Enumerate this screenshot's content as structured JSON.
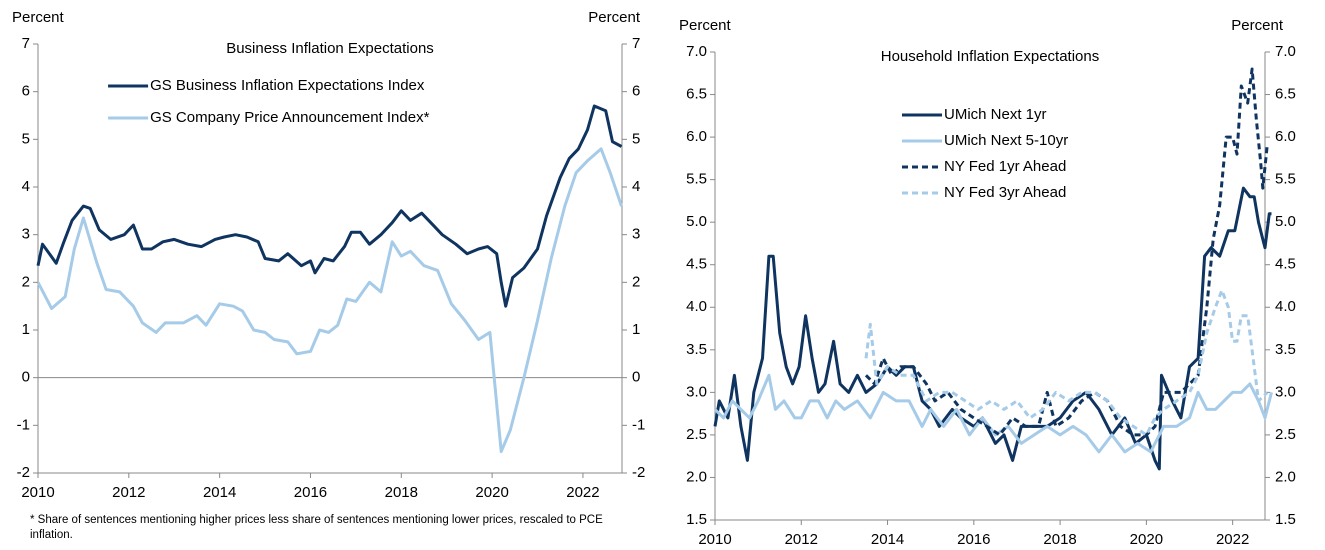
{
  "chart_data": [
    {
      "type": "line",
      "title": "Business Inflation Expectations",
      "y_label": "Percent",
      "y2_label": "Percent",
      "footnote": "* Share of sentences mentioning higher prices less share of sentences mentioning lower prices, rescaled to PCE inflation.",
      "xlim": [
        2010,
        2022.86
      ],
      "xticks": [
        2010,
        2012,
        2014,
        2016,
        2018,
        2020,
        2022
      ],
      "ylim": [
        -2,
        7
      ],
      "yticks": [
        -2,
        -1,
        0,
        1,
        2,
        3,
        4,
        5,
        6,
        7
      ],
      "y2lim": [
        -2,
        7
      ],
      "y2ticks": [
        -2,
        -1,
        0,
        1,
        2,
        3,
        4,
        5,
        6,
        7
      ],
      "zero_line": true,
      "legend": "upper center",
      "series": [
        {
          "name": "GS Business Inflation Expectations Index",
          "color": "#0f3460",
          "dash": false,
          "x": [
            2010.0,
            2010.1,
            2010.25,
            2010.4,
            2010.55,
            2010.75,
            2011.0,
            2011.15,
            2011.35,
            2011.6,
            2011.9,
            2012.1,
            2012.3,
            2012.5,
            2012.75,
            2013.0,
            2013.3,
            2013.6,
            2013.9,
            2014.1,
            2014.35,
            2014.6,
            2014.85,
            2015.0,
            2015.3,
            2015.5,
            2015.8,
            2016.0,
            2016.1,
            2016.3,
            2016.5,
            2016.75,
            2016.9,
            2017.1,
            2017.3,
            2017.55,
            2017.8,
            2018.0,
            2018.2,
            2018.45,
            2018.7,
            2018.9,
            2019.2,
            2019.45,
            2019.7,
            2019.9,
            2020.1,
            2020.2,
            2020.3,
            2020.45,
            2020.7,
            2021.0,
            2021.2,
            2021.5,
            2021.7,
            2021.9,
            2022.1,
            2022.25,
            2022.5,
            2022.65,
            2022.85
          ],
          "values": [
            2.35,
            2.8,
            2.6,
            2.4,
            2.8,
            3.3,
            3.6,
            3.55,
            3.1,
            2.9,
            3.0,
            3.2,
            2.7,
            2.7,
            2.85,
            2.9,
            2.8,
            2.75,
            2.9,
            2.95,
            3.0,
            2.95,
            2.85,
            2.5,
            2.45,
            2.6,
            2.35,
            2.45,
            2.2,
            2.5,
            2.45,
            2.75,
            3.05,
            3.05,
            2.8,
            3.0,
            3.25,
            3.5,
            3.3,
            3.45,
            3.2,
            3.0,
            2.8,
            2.6,
            2.7,
            2.75,
            2.6,
            2.0,
            1.5,
            2.1,
            2.3,
            2.7,
            3.4,
            4.2,
            4.6,
            4.8,
            5.2,
            5.7,
            5.6,
            4.95,
            4.85
          ]
        },
        {
          "name": "GS Company Price Announcement Index*",
          "color": "#a6cbe8",
          "dash": false,
          "x": [
            2010.0,
            2010.3,
            2010.6,
            2010.8,
            2011.0,
            2011.3,
            2011.5,
            2011.8,
            2012.1,
            2012.3,
            2012.6,
            2012.8,
            2013.2,
            2013.5,
            2013.7,
            2014.0,
            2014.3,
            2014.5,
            2014.75,
            2015.0,
            2015.2,
            2015.5,
            2015.7,
            2016.0,
            2016.2,
            2016.4,
            2016.6,
            2016.8,
            2017.0,
            2017.3,
            2017.55,
            2017.8,
            2018.0,
            2018.2,
            2018.5,
            2018.8,
            2019.1,
            2019.4,
            2019.7,
            2019.95,
            2020.2,
            2020.4,
            2020.7,
            2021.0,
            2021.3,
            2021.6,
            2021.85,
            2022.1,
            2022.4,
            2022.6,
            2022.85
          ],
          "values": [
            2.0,
            1.45,
            1.7,
            2.7,
            3.35,
            2.4,
            1.85,
            1.8,
            1.5,
            1.15,
            0.95,
            1.15,
            1.15,
            1.3,
            1.1,
            1.55,
            1.5,
            1.4,
            1.0,
            0.95,
            0.8,
            0.75,
            0.5,
            0.55,
            1.0,
            0.95,
            1.1,
            1.65,
            1.6,
            2.0,
            1.8,
            2.85,
            2.55,
            2.65,
            2.35,
            2.25,
            1.55,
            1.2,
            0.8,
            0.95,
            -1.55,
            -1.1,
            0.0,
            1.2,
            2.5,
            3.6,
            4.3,
            4.55,
            4.8,
            4.3,
            3.6
          ]
        }
      ]
    },
    {
      "type": "line",
      "title": "Household Inflation Expectations",
      "y_label": "Percent",
      "y2_label": "Percent",
      "xlim": [
        2010,
        2022.75
      ],
      "xticks": [
        2010,
        2012,
        2014,
        2016,
        2018,
        2020,
        2022
      ],
      "ylim": [
        1.5,
        7.0
      ],
      "yticks": [
        1.5,
        {
          "value": 2,
          "label": "2.0"
        },
        2.5,
        {
          "value": 3,
          "label": "3.0"
        },
        3.5,
        {
          "value": 4,
          "label": "4.0"
        },
        4.5,
        {
          "value": 5,
          "label": "5.0"
        },
        5.5,
        {
          "value": 6,
          "label": "6.0"
        },
        6.5,
        {
          "value": 7,
          "label": "7.0"
        }
      ],
      "y2lim": [
        1.5,
        7.0
      ],
      "y2ticks": [
        1.5,
        {
          "value": 2,
          "label": "2.0"
        },
        2.5,
        {
          "value": 3,
          "label": "3.0"
        },
        3.5,
        {
          "value": 4,
          "label": "4.0"
        },
        4.5,
        {
          "value": 5,
          "label": "5.0"
        },
        5.5,
        {
          "value": 6,
          "label": "6.0"
        },
        6.5,
        {
          "value": 7,
          "label": "7.0"
        }
      ],
      "zero_line": false,
      "legend": "center left",
      "series": [
        {
          "name": "UMich Next 1yr",
          "color": "#0f3460",
          "dash": false,
          "x": [
            2010.0,
            2010.1,
            2010.3,
            2010.45,
            2010.6,
            2010.75,
            2010.9,
            2011.1,
            2011.25,
            2011.35,
            2011.5,
            2011.65,
            2011.8,
            2011.95,
            2012.1,
            2012.25,
            2012.4,
            2012.55,
            2012.75,
            2012.9,
            2013.1,
            2013.3,
            2013.5,
            2013.75,
            2014.0,
            2014.2,
            2014.4,
            2014.6,
            2014.8,
            2015.0,
            2015.2,
            2015.5,
            2015.7,
            2016.0,
            2016.2,
            2016.5,
            2016.7,
            2016.9,
            2017.1,
            2017.4,
            2017.7,
            2018.0,
            2018.3,
            2018.6,
            2018.9,
            2019.2,
            2019.5,
            2019.75,
            2020.0,
            2020.2,
            2020.3,
            2020.35,
            2020.6,
            2020.8,
            2021.0,
            2021.2,
            2021.35,
            2021.5,
            2021.7,
            2021.9,
            2022.05,
            2022.25,
            2022.4,
            2022.5,
            2022.6,
            2022.7,
            2022.75,
            2022.85,
            2022.9
          ],
          "values": [
            2.6,
            2.9,
            2.7,
            3.2,
            2.6,
            2.2,
            3.0,
            3.4,
            4.6,
            4.6,
            3.7,
            3.3,
            3.1,
            3.3,
            3.9,
            3.4,
            3.0,
            3.1,
            3.6,
            3.1,
            3.0,
            3.2,
            3.0,
            3.1,
            3.3,
            3.2,
            3.3,
            3.3,
            2.9,
            2.8,
            2.6,
            2.8,
            2.7,
            2.6,
            2.7,
            2.4,
            2.5,
            2.2,
            2.6,
            2.6,
            2.6,
            2.7,
            2.9,
            3.0,
            2.8,
            2.5,
            2.7,
            2.4,
            2.5,
            2.2,
            2.1,
            3.2,
            2.9,
            2.7,
            3.3,
            3.4,
            4.6,
            4.7,
            4.6,
            4.9,
            4.9,
            5.4,
            5.3,
            5.3,
            5.0,
            4.8,
            4.7,
            5.1,
            5.1
          ]
        },
        {
          "name": "UMich Next 5-10yr",
          "color": "#a6cbe8",
          "dash": false,
          "x": [
            2010.0,
            2010.2,
            2010.4,
            2010.6,
            2010.8,
            2011.0,
            2011.25,
            2011.4,
            2011.6,
            2011.85,
            2012.0,
            2012.2,
            2012.4,
            2012.6,
            2012.8,
            2013.0,
            2013.3,
            2013.6,
            2013.9,
            2014.2,
            2014.5,
            2014.8,
            2015.0,
            2015.3,
            2015.6,
            2015.9,
            2016.2,
            2016.5,
            2016.8,
            2017.1,
            2017.4,
            2017.7,
            2018.0,
            2018.3,
            2018.6,
            2018.9,
            2019.2,
            2019.5,
            2019.8,
            2020.1,
            2020.4,
            2020.7,
            2021.0,
            2021.2,
            2021.4,
            2021.6,
            2021.8,
            2022.0,
            2022.2,
            2022.4,
            2022.6,
            2022.75,
            2022.9
          ],
          "values": [
            2.8,
            2.7,
            2.9,
            2.8,
            2.7,
            2.9,
            3.2,
            2.8,
            2.9,
            2.7,
            2.7,
            2.9,
            2.9,
            2.7,
            2.9,
            2.8,
            2.9,
            2.7,
            3.0,
            2.9,
            2.9,
            2.6,
            2.8,
            2.6,
            2.8,
            2.5,
            2.7,
            2.5,
            2.6,
            2.4,
            2.5,
            2.6,
            2.5,
            2.6,
            2.5,
            2.3,
            2.5,
            2.3,
            2.4,
            2.3,
            2.6,
            2.6,
            2.7,
            3.0,
            2.8,
            2.8,
            2.9,
            3.0,
            3.0,
            3.1,
            2.9,
            2.7,
            3.0
          ]
        },
        {
          "name": "NY Fed 1yr Ahead",
          "color": "#0f3460",
          "dash": true,
          "x": [
            2013.5,
            2013.7,
            2013.9,
            2014.1,
            2014.3,
            2014.6,
            2014.9,
            2015.1,
            2015.4,
            2015.7,
            2016.0,
            2016.3,
            2016.6,
            2016.9,
            2017.2,
            2017.5,
            2017.7,
            2017.9,
            2018.2,
            2018.5,
            2018.8,
            2019.1,
            2019.4,
            2019.7,
            2020.0,
            2020.2,
            2020.4,
            2020.6,
            2020.8,
            2021.0,
            2021.2,
            2021.4,
            2021.55,
            2021.7,
            2021.85,
            2022.0,
            2022.1,
            2022.2,
            2022.35,
            2022.45,
            2022.55,
            2022.65,
            2022.7,
            2022.8
          ],
          "values": [
            3.2,
            3.1,
            3.4,
            3.2,
            3.3,
            3.3,
            3.1,
            2.9,
            3.0,
            2.8,
            2.7,
            2.6,
            2.5,
            2.7,
            2.6,
            2.6,
            3.0,
            2.6,
            2.7,
            2.9,
            3.0,
            2.9,
            2.6,
            2.5,
            2.5,
            2.6,
            3.0,
            3.0,
            3.0,
            3.1,
            3.2,
            4.0,
            4.8,
            5.2,
            6.0,
            6.0,
            5.8,
            6.6,
            6.4,
            6.8,
            6.2,
            5.7,
            5.4,
            5.9
          ]
        },
        {
          "name": "NY Fed 3yr Ahead",
          "color": "#a6cbe8",
          "dash": true,
          "x": [
            2013.5,
            2013.6,
            2013.75,
            2014.0,
            2014.3,
            2014.6,
            2014.9,
            2015.2,
            2015.5,
            2015.8,
            2016.1,
            2016.4,
            2016.7,
            2017.0,
            2017.3,
            2017.6,
            2017.9,
            2018.2,
            2018.5,
            2018.8,
            2019.1,
            2019.4,
            2019.7,
            2020.0,
            2020.2,
            2020.4,
            2020.7,
            2021.0,
            2021.2,
            2021.4,
            2021.6,
            2021.75,
            2021.9,
            2022.0,
            2022.1,
            2022.2,
            2022.35,
            2022.5,
            2022.6,
            2022.8
          ],
          "values": [
            3.4,
            3.8,
            3.1,
            3.3,
            3.2,
            3.2,
            2.9,
            3.0,
            3.0,
            2.9,
            2.8,
            2.9,
            2.8,
            2.9,
            2.7,
            2.8,
            3.0,
            2.9,
            3.0,
            3.0,
            2.9,
            2.7,
            2.6,
            2.5,
            2.7,
            2.8,
            2.9,
            3.0,
            3.2,
            3.7,
            4.0,
            4.2,
            4.0,
            3.6,
            3.6,
            3.9,
            3.9,
            3.3,
            2.9,
            3.0
          ]
        }
      ]
    }
  ]
}
